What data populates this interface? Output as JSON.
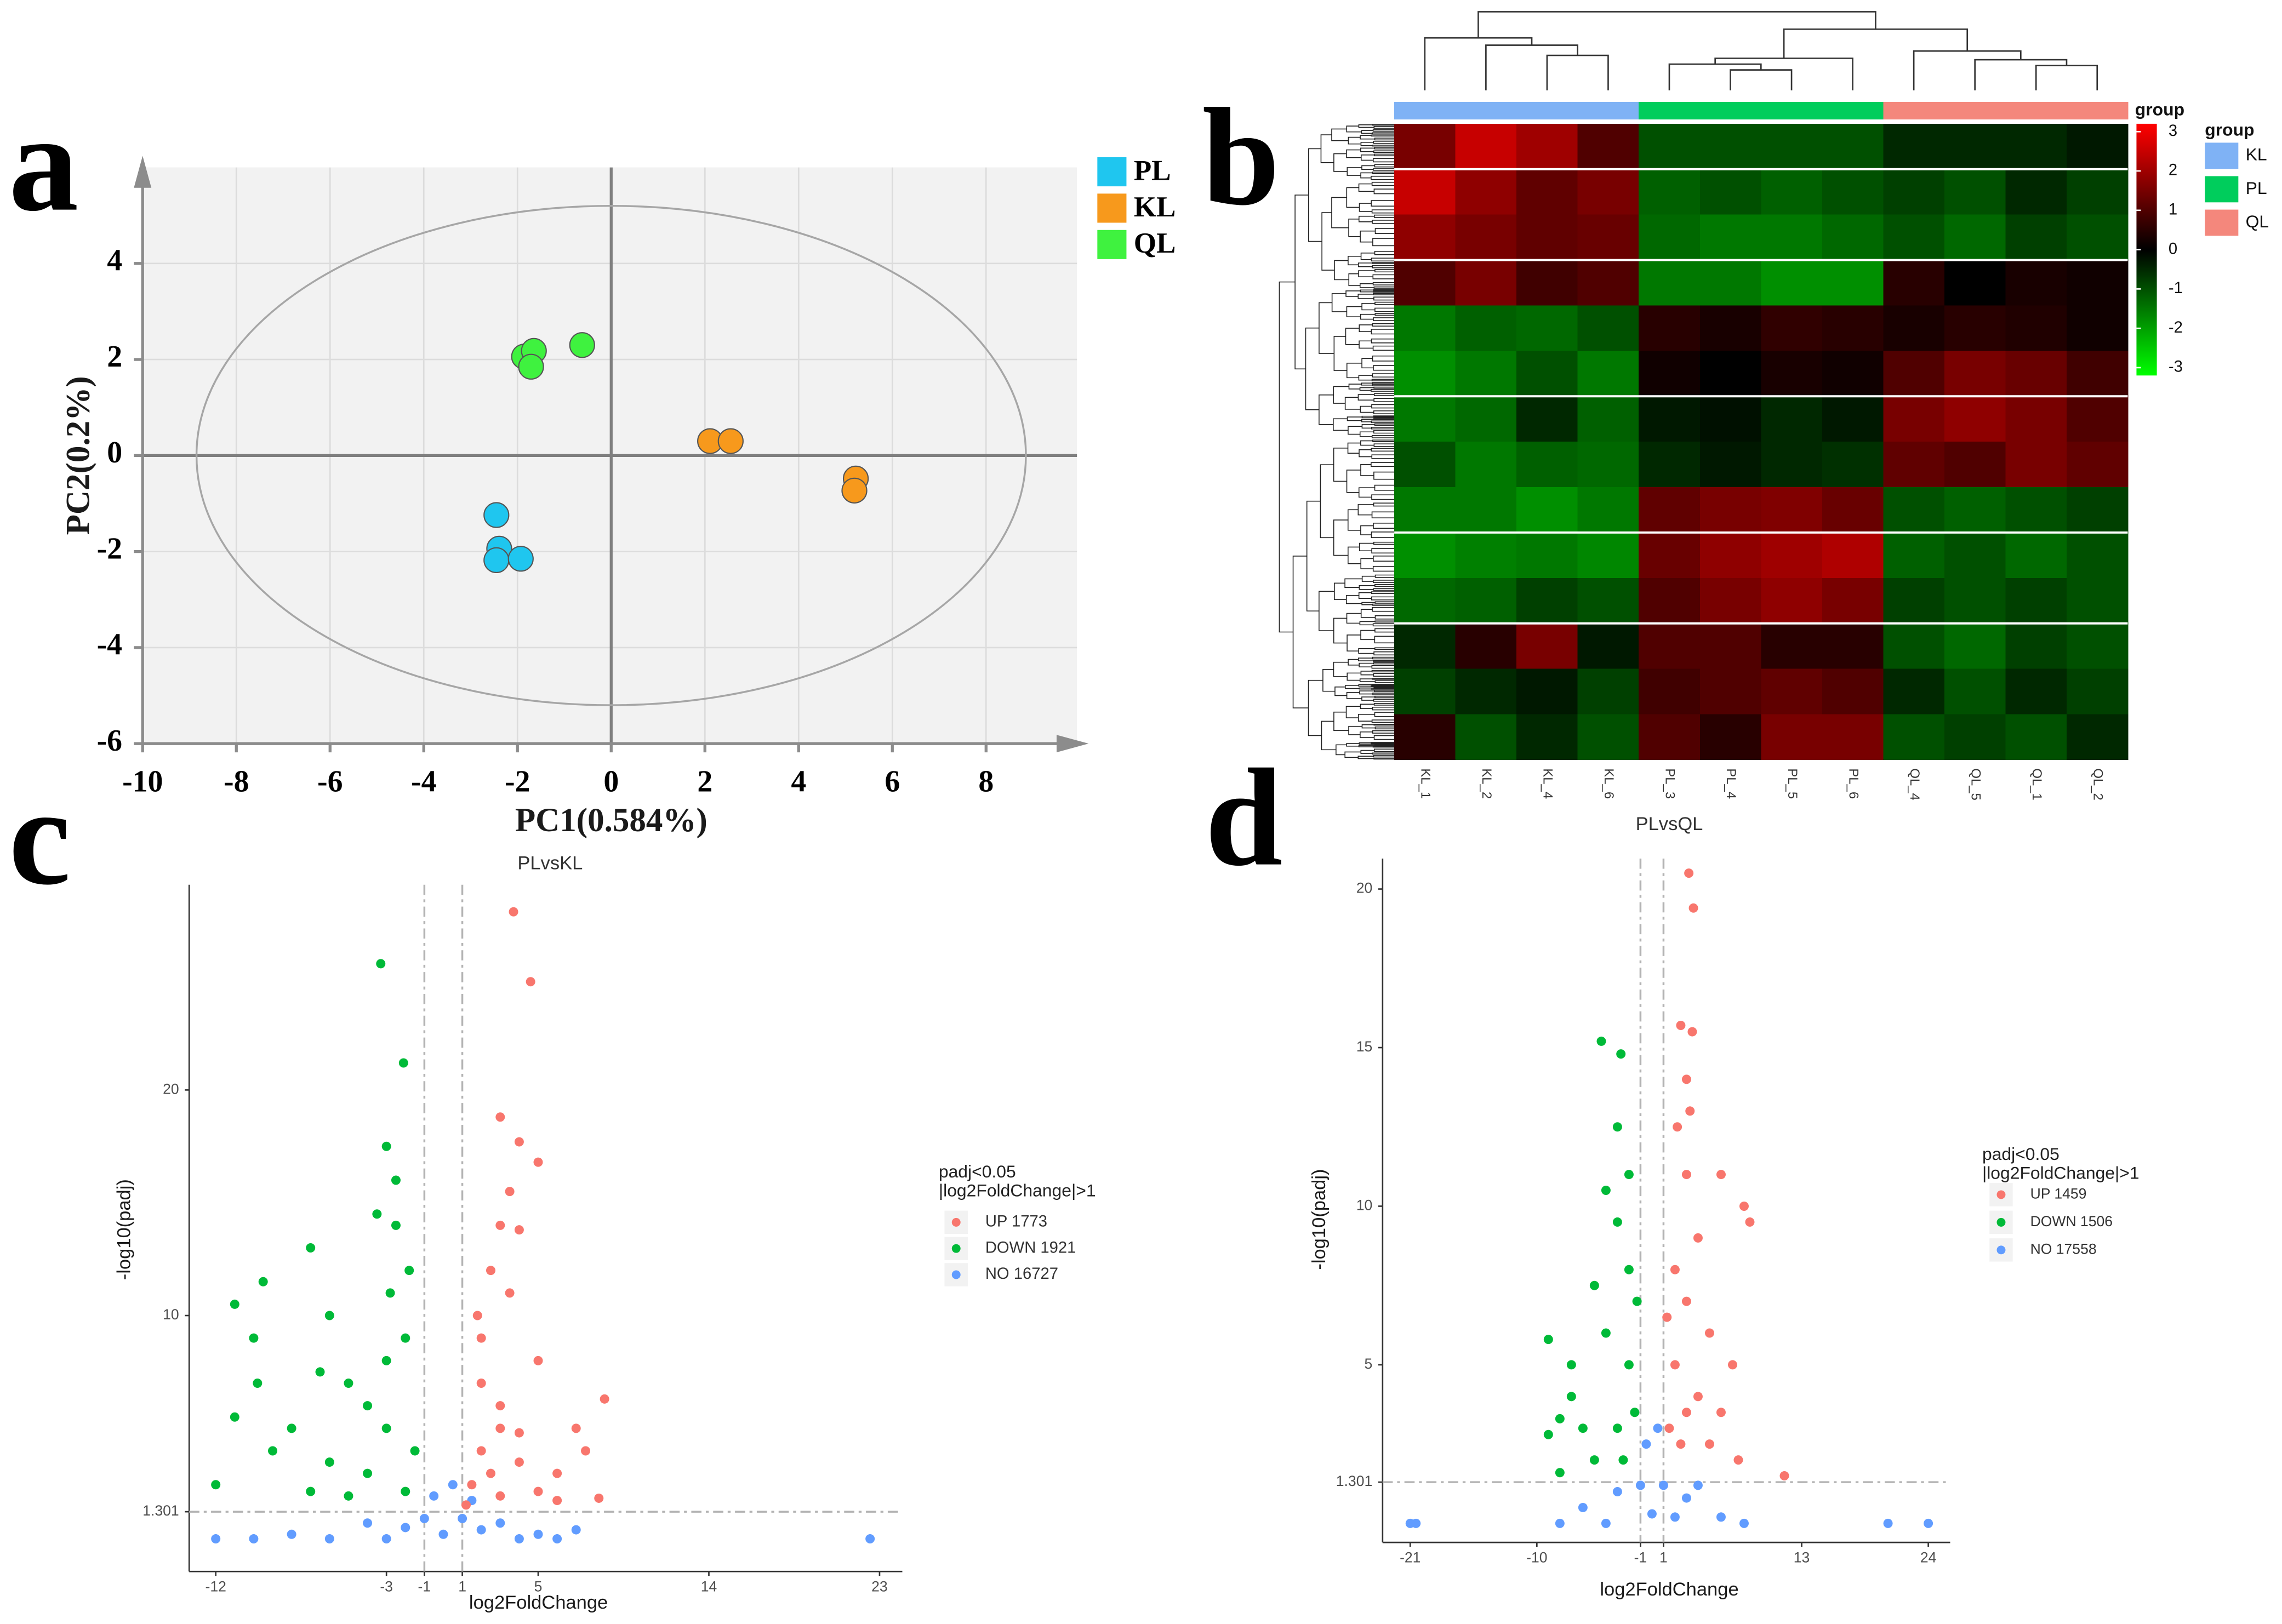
{
  "chart_data": [
    {
      "type": "scatter",
      "panel_label": "a",
      "xlabel": "PC1(0.584%)",
      "ylabel": "PC2(0.2%)",
      "xlim": [
        -10,
        9.94
      ],
      "ylim": [
        -6,
        6
      ],
      "xticks": [
        -10,
        -8,
        -6,
        -4,
        -2,
        0,
        2,
        4,
        6,
        8
      ],
      "yticks": [
        -6,
        -4,
        -2,
        0,
        2,
        4
      ],
      "grid": true,
      "background": "#f2f2f2",
      "zero_lines": true,
      "axis_arrows": true,
      "legend": "right",
      "ellipse": {
        "cx": 0,
        "cy": 0,
        "rx": 8.85,
        "ry": 5.2
      },
      "series": [
        {
          "name": "PL",
          "color": "#1fc6ef",
          "x": [
            -2.45,
            -2.39,
            -2.45,
            -1.93
          ],
          "y": [
            -1.24,
            -1.94,
            -2.18,
            -2.15
          ]
        },
        {
          "name": "KL",
          "color": "#f7991c",
          "x": [
            2.11,
            2.55,
            5.22,
            5.19
          ],
          "y": [
            0.3,
            0.3,
            -0.48,
            -0.73
          ]
        },
        {
          "name": "QL",
          "color": "#3ff23f",
          "x": [
            -1.86,
            -1.65,
            -1.71,
            -0.62
          ],
          "y": [
            2.06,
            2.18,
            1.85,
            2.3
          ]
        }
      ]
    },
    {
      "type": "heatmap",
      "panel_label": "b",
      "columns": [
        "KL_1",
        "KL_2",
        "KL_4",
        "KL_6",
        "PL_3",
        "PL_4",
        "PL_5",
        "PL_6",
        "QL_4",
        "QL_5",
        "QL_1",
        "QL_2"
      ],
      "column_group": [
        "KL",
        "KL",
        "KL",
        "KL",
        "PL",
        "PL",
        "PL",
        "PL",
        "QL",
        "QL",
        "QL",
        "QL"
      ],
      "groups": [
        {
          "name": "KL",
          "color": "#7fb2f5"
        },
        {
          "name": "PL",
          "color": "#00cd5c"
        },
        {
          "name": "QL",
          "color": "#f4877c"
        }
      ],
      "legend_title": "group",
      "colorbar_title": "group",
      "colorbar_lim": [
        -3.2,
        3.2
      ],
      "colorbar_ticks": [
        3,
        2,
        1,
        0,
        -1,
        -2,
        -3
      ],
      "colors": [
        "#00ff00",
        "#000000",
        "#ff0000"
      ],
      "values": [
        [
          1.5,
          2.5,
          2,
          1,
          -1,
          -1,
          -1,
          -1,
          -0.5,
          -0.5,
          -0.5,
          -0.3
        ],
        [
          2.5,
          1.8,
          1.2,
          1.5,
          -1.2,
          -1,
          -1.2,
          -1,
          -0.8,
          -1,
          -0.5,
          -0.8
        ],
        [
          1.8,
          1.5,
          1.2,
          1.3,
          -1.3,
          -1.5,
          -1.5,
          -1.3,
          -1,
          -1.3,
          -0.8,
          -1
        ],
        [
          1,
          1.5,
          0.8,
          1,
          -1.5,
          -1.5,
          -1.8,
          -1.8,
          0.5,
          0,
          0.3,
          0.2
        ],
        [
          -1.5,
          -1.2,
          -1.3,
          -1,
          0.5,
          0.3,
          0.6,
          0.5,
          0.3,
          0.5,
          0.4,
          0.2
        ],
        [
          -1.8,
          -1.5,
          -1,
          -1.5,
          0.2,
          0,
          0.3,
          0.2,
          1,
          1.5,
          1.3,
          0.8
        ],
        [
          -1.5,
          -1.3,
          -0.5,
          -1.2,
          -0.3,
          -0.2,
          -0.5,
          -0.3,
          1.5,
          1.8,
          1.5,
          1
        ],
        [
          -1,
          -1.5,
          -1.2,
          -1.3,
          -0.5,
          -0.3,
          -0.5,
          -0.6,
          1.2,
          1,
          1.5,
          1.2
        ],
        [
          -1.5,
          -1.5,
          -1.8,
          -1.5,
          1.2,
          1.5,
          1.6,
          1.3,
          -1,
          -1.2,
          -1,
          -0.8
        ],
        [
          -1.8,
          -1.6,
          -1.5,
          -1.7,
          1.3,
          1.8,
          2,
          2.2,
          -1.2,
          -1,
          -1.3,
          -1
        ],
        [
          -1.3,
          -1.2,
          -0.8,
          -1,
          1,
          1.5,
          1.8,
          1.5,
          -0.8,
          -1,
          -0.8,
          -1
        ],
        [
          -0.5,
          0.5,
          1.5,
          -0.3,
          1,
          1,
          0.5,
          0.5,
          -1,
          -1.3,
          -0.8,
          -1
        ],
        [
          -0.8,
          -0.5,
          -0.3,
          -0.8,
          0.8,
          1,
          1.2,
          1,
          -0.5,
          -1,
          -0.5,
          -0.8
        ],
        [
          0.5,
          -1,
          -0.5,
          -1,
          1,
          0.5,
          1.5,
          1.5,
          -1,
          -0.8,
          -1,
          -0.5
        ]
      ]
    },
    {
      "type": "scatter",
      "panel_label": "c",
      "title": "PLvsKL",
      "xlabel": "log2FoldChange",
      "ylabel": "-log10(padj)",
      "xlim": [
        -13.4,
        24.2
      ],
      "ylim": [
        -1.35,
        29.1
      ],
      "xticks": [
        -12,
        -3,
        -1,
        1,
        5,
        14,
        23
      ],
      "yticks": [
        1.301,
        10,
        20
      ],
      "vlines": [
        -1,
        1
      ],
      "hlines": [
        1.301
      ],
      "legend": "right",
      "legend_title": [
        "padj<0.05",
        "|log2FoldChange|>1"
      ],
      "series": [
        {
          "name": "UP 1773",
          "color": "#f8766d",
          "x": [
            3.7,
            4.6,
            3,
            4,
            5,
            3.5,
            3,
            4,
            2.5,
            3.5,
            2,
            5,
            8.5,
            7,
            3,
            2,
            4,
            6,
            1.5,
            3,
            5,
            7.5,
            2,
            3,
            4,
            1.2,
            6,
            8.2,
            2.5,
            1.8
          ],
          "y": [
            27.9,
            24.8,
            18.8,
            17.7,
            16.8,
            15.5,
            14,
            13.8,
            12,
            11,
            9,
            8,
            6.3,
            5,
            5,
            4,
            3.5,
            3,
            2.5,
            2,
            2.2,
            4,
            7,
            6,
            4.8,
            1.6,
            1.8,
            1.9,
            3,
            10
          ]
        },
        {
          "name": "DOWN 1921",
          "color": "#00ba38",
          "x": [
            -3.3,
            -2.1,
            -3,
            -2.5,
            -3.5,
            -2.5,
            -7,
            -9.5,
            -11,
            -10,
            -6,
            -5,
            -3,
            -2,
            -11,
            -9,
            -8,
            -6,
            -4,
            -2,
            -3,
            -1.5,
            -12,
            -5,
            -7,
            -4,
            -1.8,
            -2.8,
            -9.8,
            -6.5
          ],
          "y": [
            25.6,
            21.2,
            17.5,
            16,
            14.5,
            14,
            13,
            11.5,
            10.5,
            9,
            10,
            7,
            8,
            9,
            5.5,
            4,
            5,
            3.5,
            3,
            2.2,
            5,
            4,
            2.5,
            2,
            2.2,
            6,
            12,
            11,
            7,
            7.5
          ]
        },
        {
          "name": "NO 16727",
          "color": "#619cff",
          "x": [
            -10,
            -6,
            -3,
            0,
            -1,
            1,
            2,
            4,
            6,
            -8,
            -0.5,
            0.5,
            22.5,
            -4,
            3,
            -12,
            7,
            -2,
            1.5,
            5
          ],
          "y": [
            0.1,
            0.1,
            0.1,
            0.3,
            1,
            1,
            0.5,
            0.1,
            0.1,
            0.3,
            2,
            2.5,
            0.1,
            0.8,
            0.8,
            0.1,
            0.5,
            0.6,
            1.8,
            0.3
          ]
        }
      ]
    },
    {
      "type": "scatter",
      "panel_label": "d",
      "title": "PLvsQL",
      "xlabel": "log2FoldChange",
      "ylabel": "-log10(padj)",
      "xlim": [
        -23.4,
        25.9
      ],
      "ylim": [
        -0.6,
        20.96
      ],
      "xticks": [
        -21,
        -10,
        -1,
        1,
        13,
        24
      ],
      "yticks": [
        1.301,
        5,
        10,
        15,
        20
      ],
      "vlines": [
        -1,
        1
      ],
      "hlines": [
        1.301
      ],
      "legend": "right",
      "legend_title": [
        "padj<0.05",
        "|log2FoldChange|>1"
      ],
      "series": [
        {
          "name": "UP 1459",
          "color": "#f8766d",
          "x": [
            3.2,
            3.6,
            2.5,
            3.5,
            3,
            3.3,
            2.2,
            3,
            6,
            8,
            8.5,
            4,
            2,
            3,
            5,
            7,
            2,
            4,
            6,
            11.5,
            7.5,
            2.5,
            1.5,
            5,
            3,
            1.3
          ],
          "y": [
            20.5,
            19.4,
            15.7,
            15.5,
            14,
            13,
            12.5,
            11,
            11,
            10,
            9.5,
            9,
            8,
            7,
            6,
            5,
            5,
            4,
            3.5,
            1.5,
            2,
            2.5,
            3,
            2.5,
            3.5,
            6.5
          ]
        },
        {
          "name": "DOWN 1506",
          "color": "#00ba38",
          "x": [
            -4.4,
            -2.7,
            -3,
            -2,
            -4,
            -3,
            -2,
            -5,
            -9,
            -7,
            -8,
            -4,
            -2,
            -6,
            -3,
            -1.5,
            -5,
            -9,
            -2.5,
            -8,
            -7,
            -1.3
          ],
          "y": [
            15.2,
            14.8,
            12.5,
            11,
            10.5,
            9.5,
            8,
            7.5,
            5.8,
            5,
            3.3,
            6,
            5,
            3,
            3,
            3.5,
            2,
            2.8,
            2,
            1.6,
            4,
            7
          ]
        },
        {
          "name": "NO 17558",
          "color": "#619cff",
          "x": [
            -21,
            -20.5,
            -8,
            -4,
            0,
            -1,
            1,
            3,
            6,
            8,
            -6,
            -0.5,
            0.5,
            20.5,
            24,
            -3,
            4,
            2
          ],
          "y": [
            0,
            0,
            0,
            0,
            0.3,
            1.2,
            1.2,
            0.8,
            0.2,
            0,
            0.5,
            2.5,
            3,
            0,
            0,
            1,
            1.2,
            0.2
          ]
        }
      ]
    }
  ]
}
